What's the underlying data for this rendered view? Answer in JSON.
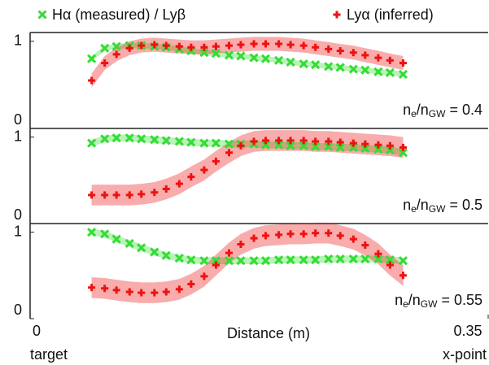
{
  "chart_data": [
    {
      "type": "scatter",
      "x": [
        0.047,
        0.057,
        0.066,
        0.076,
        0.085,
        0.095,
        0.104,
        0.114,
        0.123,
        0.133,
        0.142,
        0.152,
        0.161,
        0.171,
        0.18,
        0.19,
        0.199,
        0.209,
        0.218,
        0.228,
        0.237,
        0.247,
        0.256,
        0.266,
        0.275,
        0.285
      ],
      "series": [
        {
          "name": "Hα (measured) / Lyβ",
          "color": "#33dd33",
          "marker": "x",
          "error": 0.03,
          "values": [
            0.8,
            0.92,
            0.94,
            0.95,
            0.95,
            0.94,
            0.93,
            0.91,
            0.89,
            0.87,
            0.86,
            0.84,
            0.83,
            0.81,
            0.8,
            0.78,
            0.76,
            0.74,
            0.73,
            0.71,
            0.7,
            0.68,
            0.67,
            0.65,
            0.64,
            0.62
          ]
        },
        {
          "name": "Lyα (inferred)",
          "color": "#ee1111",
          "marker": "+",
          "error": 0.08,
          "values": [
            0.55,
            0.75,
            0.85,
            0.92,
            0.95,
            0.96,
            0.95,
            0.94,
            0.93,
            0.93,
            0.94,
            0.95,
            0.96,
            0.97,
            0.97,
            0.97,
            0.96,
            0.95,
            0.93,
            0.91,
            0.89,
            0.87,
            0.84,
            0.81,
            0.78,
            0.75
          ]
        }
      ],
      "annotation": [
        "n",
        "e",
        "/n",
        "GW",
        " = 0.4"
      ],
      "xlim": [
        0,
        0.35
      ],
      "ylim": [
        0,
        1.1
      ],
      "yticks": [
        0,
        1
      ]
    },
    {
      "type": "scatter",
      "x": [
        0.047,
        0.057,
        0.066,
        0.076,
        0.085,
        0.095,
        0.104,
        0.114,
        0.123,
        0.133,
        0.142,
        0.152,
        0.161,
        0.171,
        0.18,
        0.19,
        0.199,
        0.209,
        0.218,
        0.228,
        0.237,
        0.247,
        0.256,
        0.266,
        0.275,
        0.285
      ],
      "series": [
        {
          "color": "#33dd33",
          "marker": "x",
          "error": 0.04,
          "values": [
            0.93,
            0.98,
            0.99,
            0.99,
            0.98,
            0.97,
            0.96,
            0.95,
            0.94,
            0.93,
            0.93,
            0.92,
            0.92,
            0.92,
            0.91,
            0.91,
            0.9,
            0.9,
            0.89,
            0.89,
            0.88,
            0.88,
            0.87,
            0.86,
            0.85,
            0.82
          ]
        },
        {
          "color": "#ee1111",
          "marker": "+",
          "error": 0.12,
          "values": [
            0.33,
            0.33,
            0.33,
            0.33,
            0.34,
            0.36,
            0.4,
            0.46,
            0.54,
            0.62,
            0.72,
            0.82,
            0.9,
            0.95,
            0.96,
            0.96,
            0.96,
            0.96,
            0.95,
            0.95,
            0.94,
            0.93,
            0.92,
            0.91,
            0.9,
            0.88
          ]
        }
      ],
      "annotation": [
        "n",
        "e",
        "/n",
        "GW",
        " = 0.5"
      ],
      "xlim": [
        0,
        0.35
      ],
      "ylim": [
        0,
        1.1
      ],
      "yticks": [
        0,
        1
      ]
    },
    {
      "type": "scatter",
      "x": [
        0.047,
        0.057,
        0.066,
        0.076,
        0.085,
        0.095,
        0.104,
        0.114,
        0.123,
        0.133,
        0.142,
        0.152,
        0.161,
        0.171,
        0.18,
        0.19,
        0.199,
        0.209,
        0.218,
        0.228,
        0.237,
        0.247,
        0.256,
        0.266,
        0.275,
        0.285
      ],
      "series": [
        {
          "color": "#33dd33",
          "marker": "x",
          "error": 0.04,
          "values": [
            1.0,
            0.98,
            0.92,
            0.87,
            0.82,
            0.77,
            0.73,
            0.7,
            0.68,
            0.67,
            0.67,
            0.67,
            0.67,
            0.67,
            0.67,
            0.68,
            0.68,
            0.68,
            0.68,
            0.69,
            0.69,
            0.69,
            0.69,
            0.69,
            0.68,
            0.67
          ]
        },
        {
          "color": "#ee1111",
          "marker": "+",
          "error": 0.12,
          "values": [
            0.36,
            0.35,
            0.33,
            0.31,
            0.3,
            0.3,
            0.31,
            0.34,
            0.4,
            0.49,
            0.62,
            0.76,
            0.86,
            0.93,
            0.96,
            0.97,
            0.98,
            0.98,
            0.99,
            0.99,
            0.96,
            0.92,
            0.85,
            0.75,
            0.62,
            0.5
          ]
        }
      ],
      "annotation": [
        "n",
        "e",
        "/n",
        "GW",
        " = 0.55"
      ],
      "xlim": [
        0,
        0.35
      ],
      "ylim": [
        0,
        1.1
      ],
      "yticks": [
        0,
        1
      ],
      "xticks": [
        0,
        0.35
      ],
      "xlabel": "Distance (m)",
      "x_end_labels": [
        "target",
        "x-point"
      ]
    }
  ]
}
